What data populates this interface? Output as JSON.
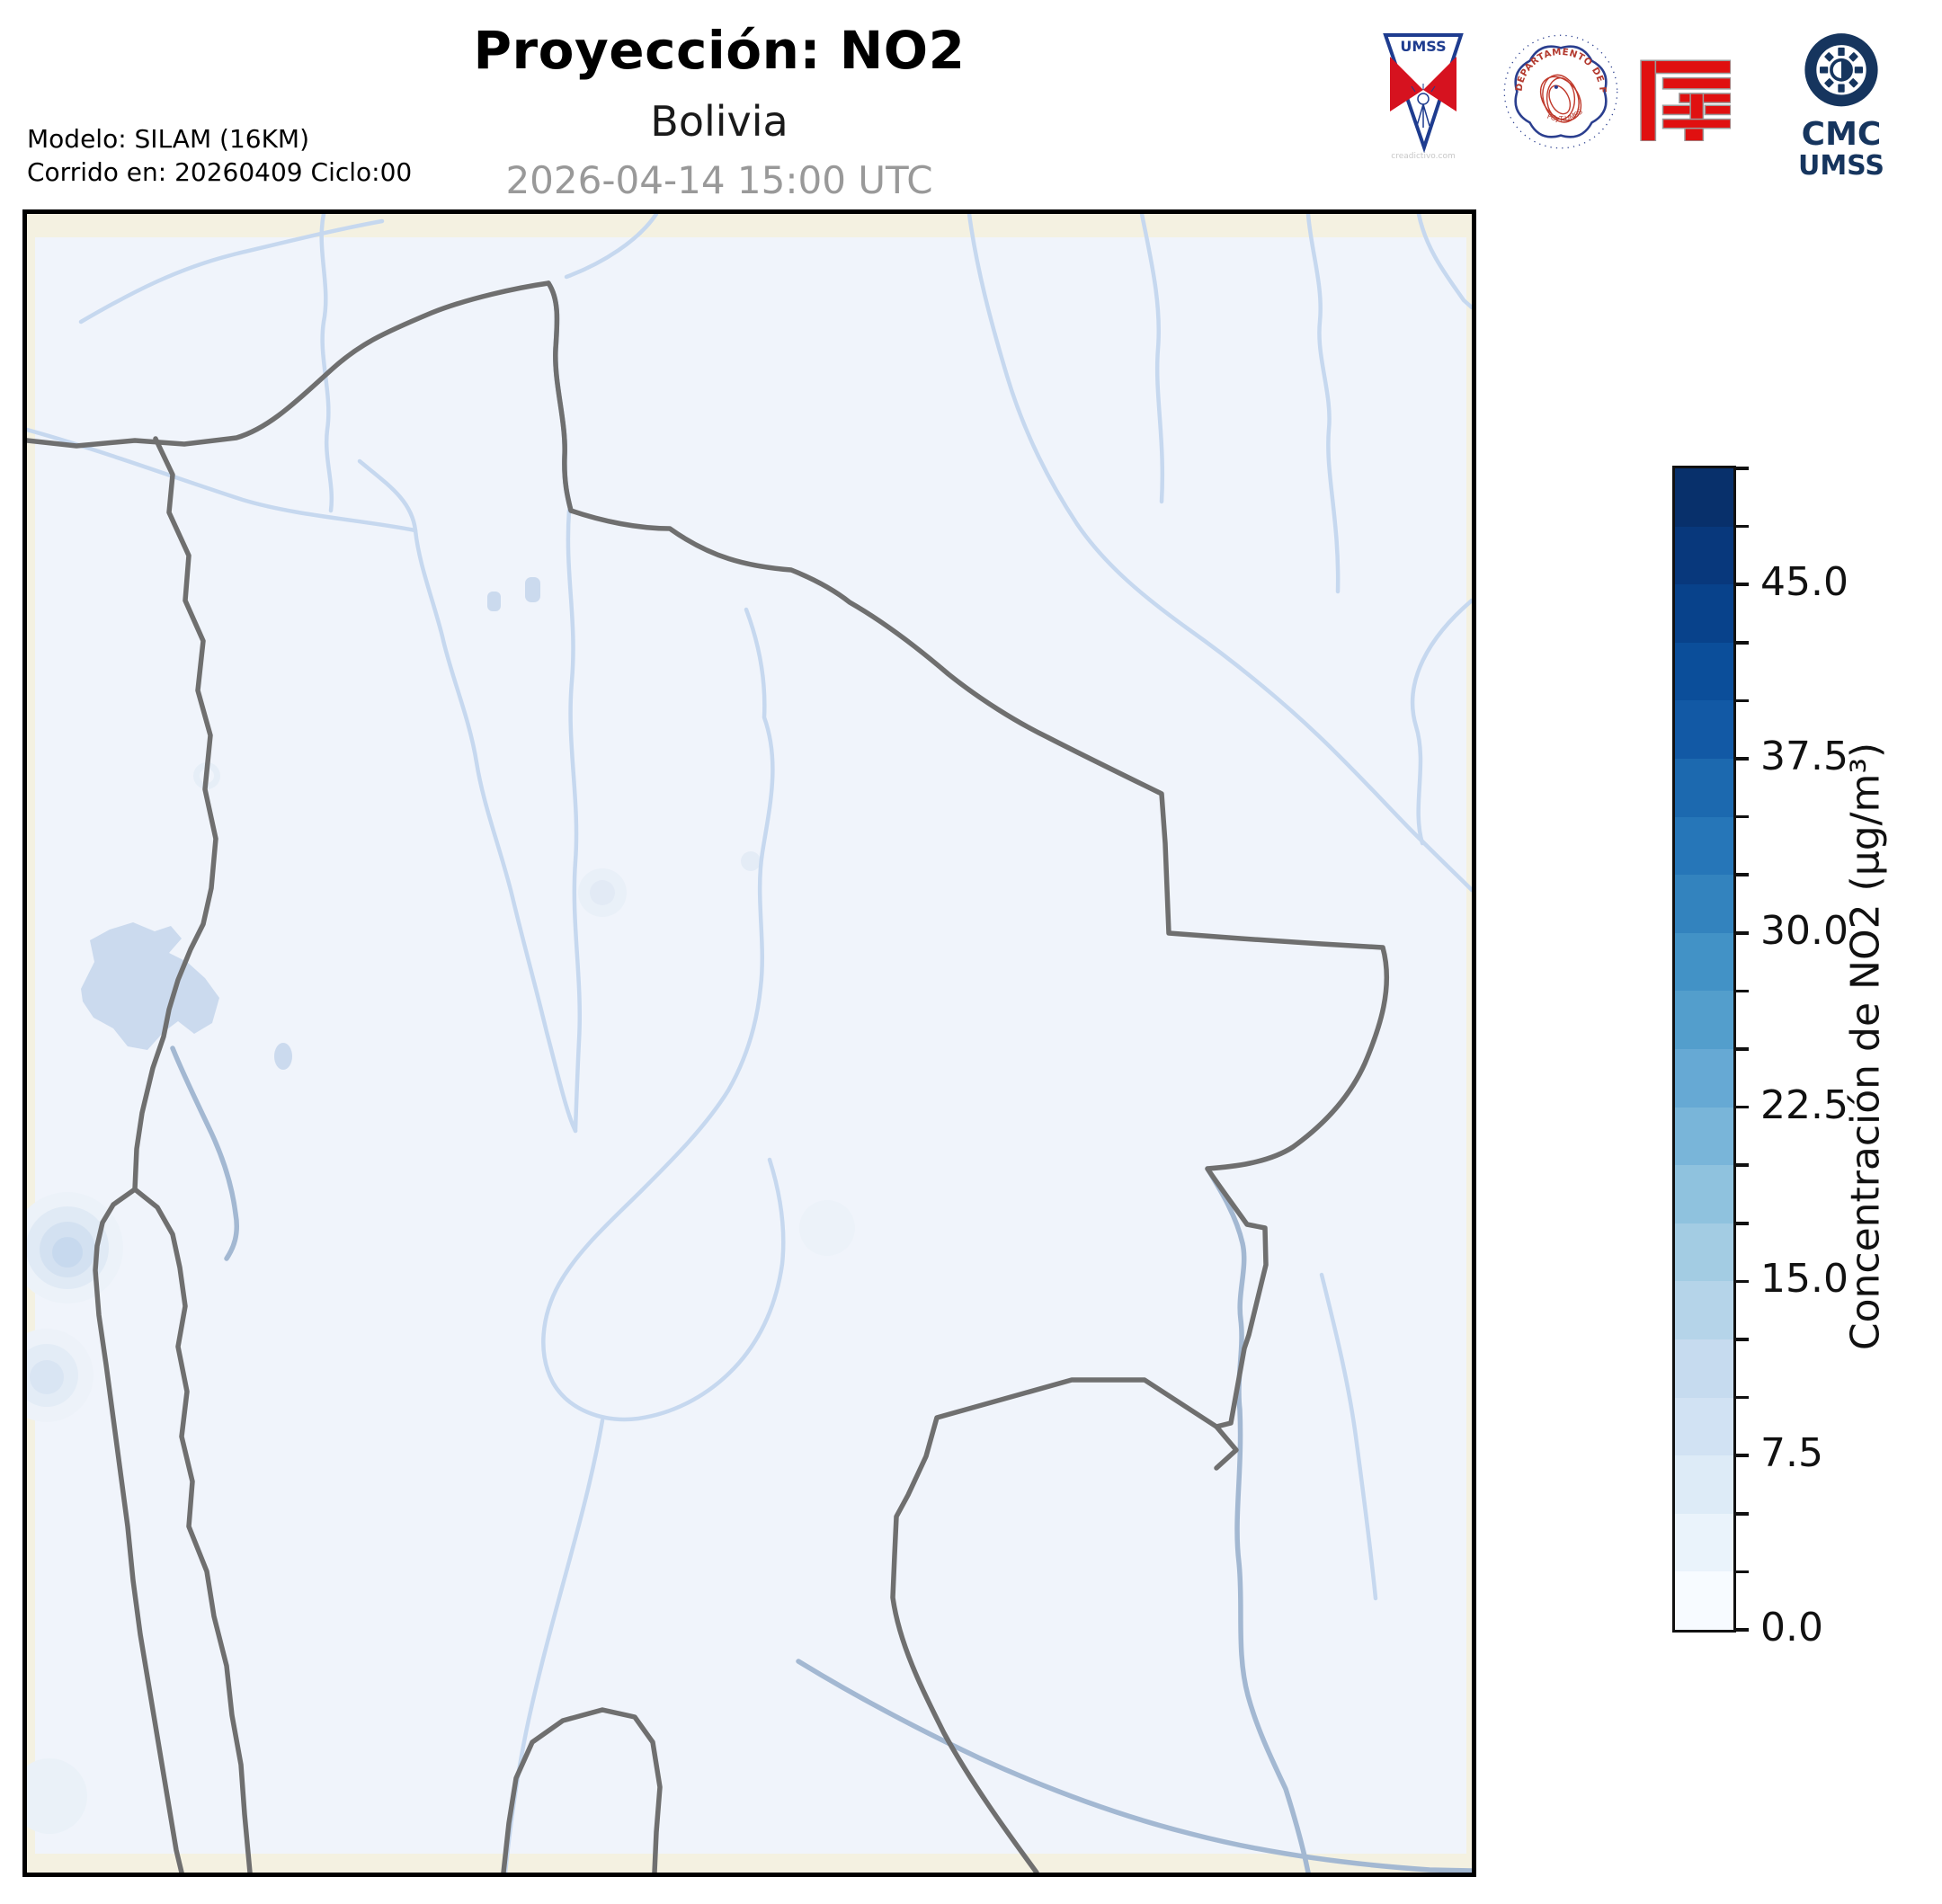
{
  "header": {
    "title": "Proyección: NO2",
    "subtitle": "Bolivia",
    "datetime": "2026-04-14 15:00 UTC",
    "model_line1": "Modelo: SILAM (16KM)",
    "model_line2": "Corrido en: 20260409 Ciclo:00"
  },
  "logos": {
    "umss_pennant": {
      "icon": "umss-pennant-icon",
      "text": "UMSS",
      "watermark": "creadictivo.com"
    },
    "fisica_seal": {
      "icon": "physics-department-seal-icon",
      "text_top": "DEPARTAMENTO DE FÍSICA",
      "text_bottom": "FCyT-UMSS"
    },
    "fcyt_logo": {
      "icon": "fcyt-red-maze-icon"
    },
    "cmc_logo": {
      "icon": "cmc-gear-ring-icon",
      "line1": "CMC",
      "line2": "UMSS"
    }
  },
  "colorbar": {
    "label": "Concentración de NO2 (µg/m³)",
    "vmin": 0,
    "vmax": 50,
    "step": 2.5,
    "major_ticks": [
      "0.0",
      "7.5",
      "15.0",
      "22.5",
      "30.0",
      "37.5",
      "45.0"
    ],
    "colors_bottom_to_top": [
      "#f7fbff",
      "#eaf3fb",
      "#ddebf7",
      "#d1e2f3",
      "#c6dbef",
      "#b5d4e9",
      "#a3cce3",
      "#8fc2de",
      "#79b5d9",
      "#66a9d4",
      "#539ecc",
      "#4292c6",
      "#3383be",
      "#2676b8",
      "#1c69af",
      "#1259a5",
      "#0b4e9a",
      "#08428b",
      "#08387c",
      "#08306b"
    ]
  },
  "map_colors": {
    "frame": "#000000",
    "outside_domain": "#f4f1e1",
    "domain_background": "#f0f4fb",
    "lake": "#cbdaee",
    "river_thin": "#c6d8ef",
    "river_main": "#a3b8d2",
    "border_gray": "#6f6f6f"
  },
  "chart_data": {
    "type": "map",
    "title": "Proyección: NO2",
    "region": "Bolivia",
    "model": "SILAM (16KM)",
    "run_date": "20260409",
    "cycle": "00",
    "valid_time": "2026-04-14 15:00 UTC",
    "variable": "Concentración de NO2",
    "units": "µg/m³",
    "scale": {
      "min": 0,
      "max": 50,
      "segment_interval": 2.5,
      "labeled_ticks": [
        0.0,
        7.5,
        15.0,
        22.5,
        30.0,
        37.5,
        45.0
      ],
      "colormap": "Blues",
      "orientation": "vertical-right"
    },
    "field_summary": "NO2 concentration near 0 µg/m³ over the entire Bolivia domain; only faint patches below ~7.5 µg/m³ along the western Andes edge and a few isolated weak spots; map shows gray national/departmental borders, light-blue rivers and Lake Titicaca."
  }
}
